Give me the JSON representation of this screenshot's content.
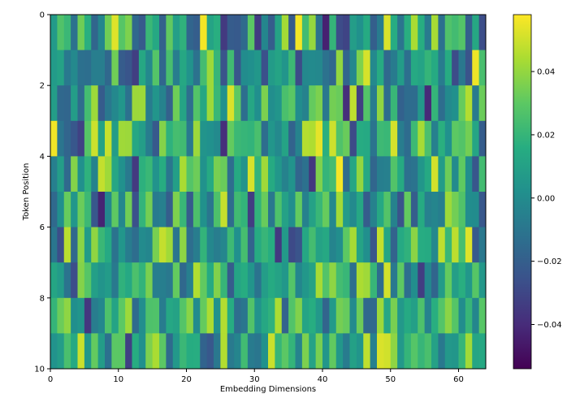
{
  "chart_data": {
    "type": "heatmap",
    "title": "",
    "xlabel": "Embedding Dimensions",
    "ylabel": "Token Position",
    "colormap": "viridis",
    "rows": 10,
    "cols": 64,
    "xlim": [
      0,
      64
    ],
    "ylim": [
      10,
      0
    ],
    "x_ticks": [
      0,
      10,
      20,
      30,
      40,
      50,
      60
    ],
    "x_tick_labels": [
      "0",
      "10",
      "20",
      "30",
      "40",
      "50",
      "60"
    ],
    "y_ticks": [
      0,
      2,
      4,
      6,
      8,
      10
    ],
    "y_tick_labels": [
      "0",
      "2",
      "4",
      "6",
      "8",
      "10"
    ],
    "colorbar": {
      "vmin": -0.054,
      "vmax": 0.058,
      "ticks": [
        0.04,
        0.02,
        0.0,
        -0.02,
        -0.04
      ],
      "tick_labels": [
        "0.04",
        "0.02",
        "0.00",
        "−0.02",
        "−0.04"
      ]
    },
    "value_scale": 0.03,
    "values": [
      [
        0.22,
        0.9,
        0.71,
        -0.39,
        1.12,
        0.56,
        -0.56,
        -0.08,
        1.12,
        1.76,
        0.95,
        1.2,
        -0.52,
        -0.74,
        0.7,
        0.46,
        -0.64,
        1.03,
        0.31,
        0.61,
        -0.57,
        -0.67,
        1.88,
        0.38,
        0.55,
        -1.16,
        -0.7,
        -0.73,
        -0.5,
        0.99,
        -1.14,
        -0.08,
        -0.69,
        0.37,
        1.43,
        -0.72,
        1.88,
        0.77,
        1.34,
        -0.4,
        -1.45,
        0.66,
        -0.93,
        -1.03,
        0.28,
        0.09,
        0.49,
        -0.66,
        -0.24,
        1.73,
        0.51,
        -0.34,
        0.55,
        1.46,
        0.53,
        -0.27,
        1.44,
        -0.41,
        0.89,
        0.78,
        0.93,
        -0.66,
        0.44,
        -0.91
      ],
      [
        0.24,
        0.35,
        -0.28,
        -0.04,
        -0.41,
        -0.44,
        -0.21,
        -0.21,
        -0.53,
        1.12,
        -0.71,
        -0.81,
        -1.11,
        0.44,
        -0.06,
        0.93,
        -0.56,
        0.83,
        -0.22,
        0.44,
        0.11,
        -0.39,
        0.8,
        1.39,
        0.68,
        -0.82,
        0.76,
        -0.79,
        0.01,
        0.06,
        0.18,
        -0.87,
        0.25,
        0.38,
        0.14,
        0.73,
        -0.94,
        -0.06,
        -0.02,
        -0.06,
        -0.39,
        -0.55,
        1.33,
        -0.58,
        -0.06,
        1.2,
        1.71,
        -0.04,
        0.5,
        -0.52,
        -0.25,
        0.26,
        -0.43,
        0.47,
        0.37,
        0.66,
        0.49,
        -0.23,
        0.5,
        -0.93,
        -0.3,
        -0.82,
        1.85,
        0.83
      ],
      [
        0.27,
        -0.53,
        -0.56,
        0.28,
        -0.48,
        0.79,
        1.39,
        -0.7,
        -0.3,
        -0.05,
        0.16,
        -0.4,
        1.38,
        1.39,
        -0.23,
        0.15,
        -0.14,
        -0.64,
        1.11,
        0.37,
        -0.45,
        0.92,
        0.44,
        1.39,
        0.7,
        0.08,
        1.74,
        1.01,
        -0.44,
        0.42,
        0.05,
        1.19,
        0.03,
        0.14,
        0.84,
        0.98,
        0.02,
        -0.14,
        1.05,
        1.19,
        -0.3,
        1.14,
        1.08,
        -1.31,
        1.58,
        -1.11,
        0.92,
        -0.24,
        1.31,
        -0.47,
        0.69,
        -0.63,
        -0.47,
        -0.47,
        0.2,
        -1.36,
        0.66,
        -0.46,
        -0.02,
        0.07,
        1.06,
        1.51,
        -0.27,
        1.09
      ],
      [
        1.86,
        -0.34,
        -0.58,
        -0.78,
        -1.06,
        0.95,
        1.66,
        0.36,
        1.63,
        0.26,
        1.4,
        1.38,
        0.44,
        0.28,
        -0.24,
        -0.73,
        1.24,
        0.6,
        0.81,
        0.76,
        -0.28,
        1.38,
        0.13,
        0.08,
        -0.03,
        -1.3,
        1.04,
        0.72,
        0.67,
        0.64,
        0.84,
        -0.46,
        0.16,
        -0.04,
        0.38,
        -0.6,
        -0.13,
        1.53,
        1.49,
        1.8,
        0.57,
        1.66,
        0.89,
        1.08,
        -0.94,
        0.5,
        0.47,
        -0.35,
        0.74,
        0.7,
        1.7,
        -0.22,
        -0.47,
        0.74,
        1.44,
        0.85,
        -0.18,
        0.56,
        0.08,
        1.0,
        0.92,
        1.14,
        0.4,
        -0.69
      ],
      [
        -0.19,
        0.28,
        -0.51,
        1.24,
        0.06,
        0.6,
        -0.14,
        1.61,
        1.4,
        0.42,
        0.08,
        -0.28,
        -1.16,
        0.59,
        0.7,
        0.11,
        0.52,
        -0.32,
        0.31,
        1.46,
        0.93,
        1.1,
        0.1,
        0.49,
        1.17,
        1.08,
        -0.45,
        0.48,
        0.12,
        1.71,
        0.63,
        1.4,
        0.48,
        0.18,
        -0.15,
        0.12,
        -0.58,
        -0.4,
        -1.19,
        1.21,
        0.66,
        0.8,
        1.89,
        -0.49,
        0.42,
        1.33,
        0.46,
        -0.56,
        -0.2,
        -0.17,
        0.91,
        0.48,
        -0.42,
        -0.37,
        0.17,
        0.47,
        1.69,
        0.26,
        1.1,
        -0.02,
        1.02,
        0.04,
        -0.78,
        0.78
      ],
      [
        -0.52,
        0.05,
        1.06,
        0.16,
        1.09,
        0.73,
        -0.78,
        -1.42,
        -0.07,
        1.01,
        -0.07,
        1.12,
        -0.87,
        0.65,
        1.15,
        -0.25,
        -0.18,
        -0.67,
        1.2,
        0.69,
        -0.71,
        0.87,
        0.09,
        -0.33,
        0.87,
        1.62,
        -0.48,
        0.76,
        0.64,
        -1.12,
        0.63,
        1.07,
        -0.31,
        0.88,
        0.34,
        0.04,
        1.04,
        -0.16,
        0.34,
        0.69,
        1.06,
        -0.06,
        1.42,
        0.24,
        -0.03,
        0.43,
        -0.71,
        -0.15,
        0.45,
        0.92,
        -0.15,
        -0.83,
        1.04,
        -0.67,
        0.49,
        -0.17,
        -0.1,
        -0.2,
        1.39,
        1.13,
        0.9,
        0.02,
        0.01,
        -0.76
      ],
      [
        -0.32,
        -0.91,
        1.55,
        -0.53,
        1.28,
        0.25,
        1.31,
        0.7,
        0.47,
        -0.37,
        0.16,
        -0.24,
        -0.46,
        -0.01,
        -0.08,
        1.17,
        1.61,
        1.41,
        -0.34,
        1.3,
        -0.45,
        -0.22,
        0.64,
        -0.07,
        -0.22,
        -0.09,
        0.74,
        0.07,
        0.81,
        -0.61,
        0.5,
        0.68,
        0.53,
        -1.18,
        0.21,
        -0.96,
        -0.82,
        0.43,
        0.8,
        0.36,
        0.46,
        -0.12,
        0.03,
        1.0,
        1.44,
        0.37,
        0.05,
        -0.81,
        1.61,
        0.4,
        -0.61,
        0.47,
        0.61,
        1.28,
        0.51,
        0.48,
        -0.05,
        1.58,
        0.7,
        1.57,
        0.82,
        1.76,
        -0.74,
        -0.3
      ],
      [
        0.41,
        0.24,
        -0.37,
        -0.9,
        1.24,
        0.95,
        0.3,
        0.13,
        0.24,
        -0.28,
        0.61,
        0.45,
        0.86,
        0.64,
        1.18,
        -0.2,
        -0.2,
        -0.3,
        1.04,
        -0.53,
        -0.19,
        1.5,
        1.03,
        0.49,
        1.22,
        0.67,
        -0.7,
        0.39,
        0.52,
        0.14,
        -0.37,
        0.27,
        0.48,
        0.36,
        0.18,
        0.93,
        -0.08,
        0.18,
        0.36,
        1.44,
        0.92,
        1.3,
        0.79,
        0.69,
        -0.43,
        1.47,
        1.4,
        0.68,
        -0.47,
        1.69,
        -0.3,
        1.01,
        -0.45,
        0.03,
        -1.12,
        -0.08,
        -0.57,
        0.25,
        1.04,
        0.29,
        0.55,
        0.18,
        0.95,
        0.2
      ],
      [
        0.66,
        1.09,
        1.3,
        0.05,
        0.15,
        -1.2,
        -0.22,
        -0.07,
        0.88,
        0.38,
        1.0,
        1.39,
        -0.49,
        0.04,
        0.88,
        0.89,
        -0.24,
        0.43,
        0.36,
        0.93,
        1.27,
        0.01,
        1.05,
        1.48,
        0.1,
        1.52,
        0.51,
        -0.46,
        -0.32,
        0.91,
        0.12,
        0.44,
        0.61,
        1.48,
        -0.61,
        0.91,
        1.22,
        0.39,
        0.53,
        0.19,
        -0.58,
        0.22,
        1.15,
        1.06,
        -0.02,
        1.1,
        -0.51,
        -0.52,
        1.39,
        0.43,
        1.17,
        0.2,
        0.47,
        0.31,
        0.88,
        -0.14,
        0.55,
        0.93,
        1.28,
        0.94,
        0.02,
        0.68,
        -0.08,
        0.96
      ],
      [
        0.12,
        0.27,
        0.84,
        0.47,
        1.64,
        0.18,
        1.04,
        0.26,
        -0.41,
        0.99,
        0.98,
        -1.08,
        0.52,
        0.07,
        1.19,
        1.46,
        0.99,
        -0.5,
        0.19,
        0.71,
        0.52,
        0.54,
        -0.6,
        -0.76,
        -0.3,
        1.51,
        -0.27,
        -0.1,
        0.77,
        -0.25,
        -0.32,
        0.09,
        1.64,
        0.67,
        0.99,
        0.65,
        -0.13,
        1.19,
        0.35,
        1.17,
        0.17,
        1.03,
        0.18,
        -0.25,
        0.32,
        0.14,
        1.58,
        -0.17,
        1.73,
        1.68,
        1.3,
        0.2,
        0.66,
        0.94,
        0.68,
        0.84,
        0.34,
        -0.29,
        0.2,
        0.17,
        0.67,
        1.41,
        0.41,
        0.46
      ]
    ]
  }
}
